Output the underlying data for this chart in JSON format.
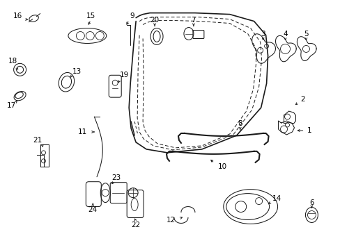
{
  "bg_color": "#ffffff",
  "line_color": "#1a1a1a",
  "figsize": [
    4.89,
    3.6
  ],
  "dpi": 100,
  "lw": 0.75
}
